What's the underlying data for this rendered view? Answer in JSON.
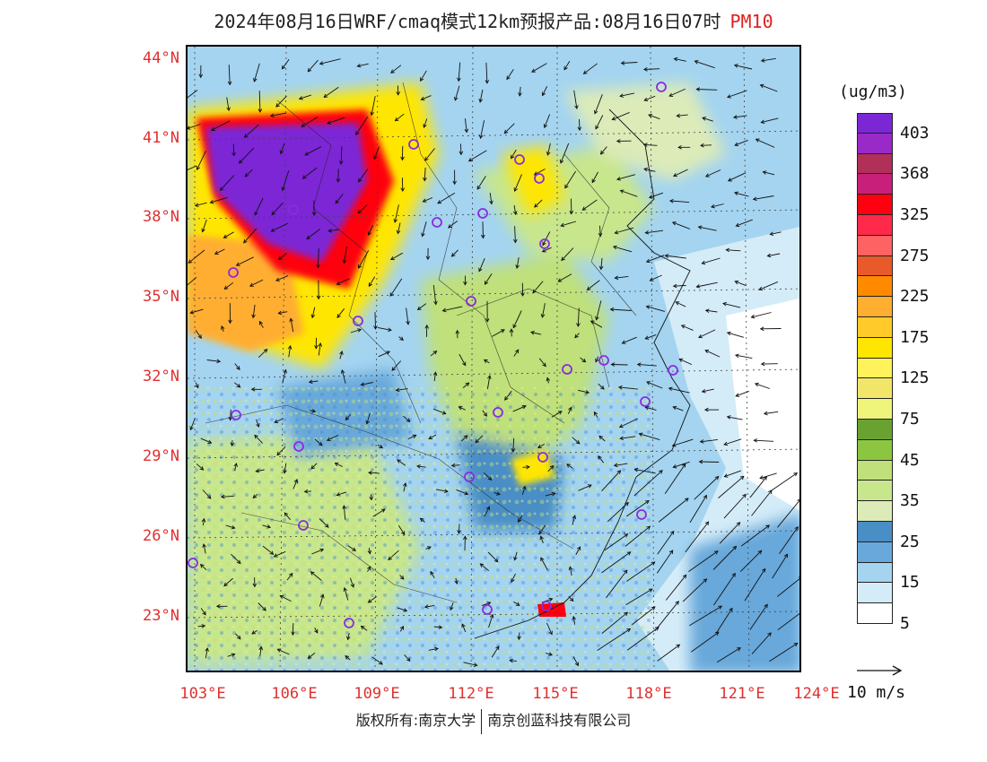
{
  "header": {
    "title": "2024年08月16日WRF/cmaq模式12km预报产品:08月16日07时",
    "variable": "PM10"
  },
  "axes": {
    "lat_labels": [
      "44°N",
      "41°N",
      "38°N",
      "35°N",
      "32°N",
      "29°N",
      "26°N",
      "23°N"
    ],
    "lon_labels": [
      "103°E",
      "106°E",
      "109°E",
      "112°E",
      "115°E",
      "118°E",
      "121°E",
      "124°E"
    ]
  },
  "legend": {
    "unit": "(ug/m3)",
    "labels": [
      "403",
      "368",
      "325",
      "275",
      "225",
      "175",
      "125",
      "75",
      "45",
      "35",
      "25",
      "15",
      "5"
    ],
    "colors": [
      "#7b27d6",
      "#9a2ac8",
      "#b0305a",
      "#c8207a",
      "#ff0010",
      "#ff2a4a",
      "#ff6262",
      "#e85a2a",
      "#ff8a00",
      "#ffae30",
      "#ffca2a",
      "#ffe600",
      "#fff25a",
      "#f2e66a",
      "#eef57a",
      "#6aa232",
      "#8cc640",
      "#bfe07a",
      "#c8e68c",
      "#dcebb8",
      "#4a8ec6",
      "#68a8da",
      "#a4d4f0",
      "#d4ecf8",
      "#ffffff"
    ]
  },
  "wind_reference": {
    "label": "10 m/s"
  },
  "footer": {
    "left": "版权所有:南京大学",
    "right": "南京创蓝科技有限公司"
  }
}
